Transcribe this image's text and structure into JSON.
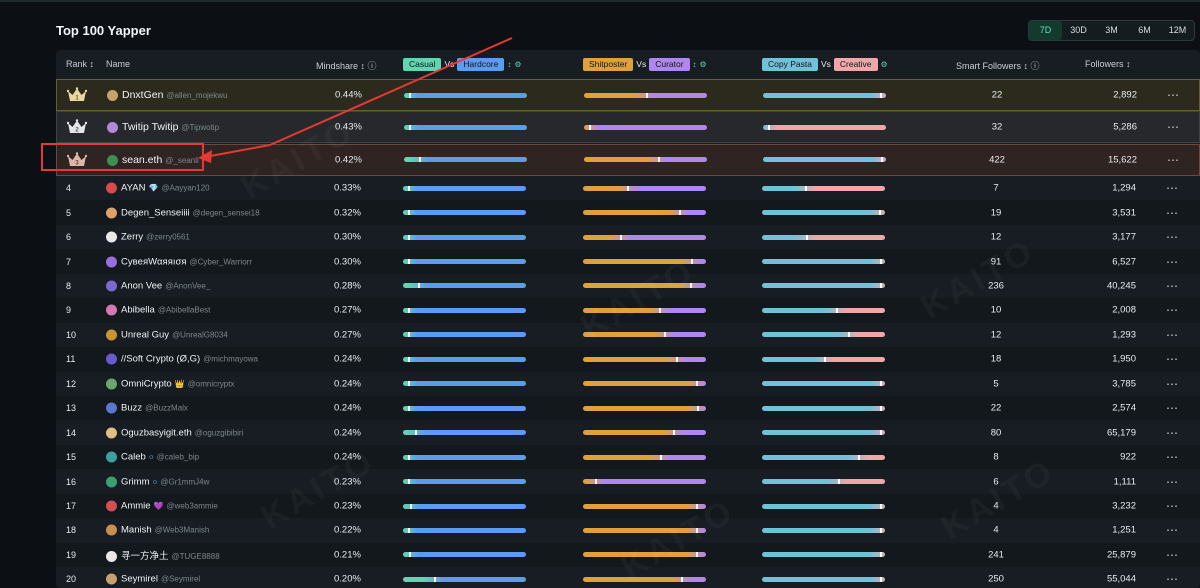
{
  "title": "Top 100 Yapper",
  "periods": [
    {
      "label": "7D",
      "active": true
    },
    {
      "label": "30D",
      "active": false
    },
    {
      "label": "3M",
      "active": false
    },
    {
      "label": "6M",
      "active": false
    },
    {
      "label": "12M",
      "active": false
    }
  ],
  "headers": {
    "rank": "Rank ↕",
    "name": "Name",
    "mindshare": "Mindshare ↕ ⓘ",
    "casual": "Casual",
    "hardcore": "Hardcore",
    "shitposter": "Shitposter",
    "curator": "Curator",
    "copy_pasta": "Copy Pasta",
    "creative": "Creative",
    "vs": "Vs",
    "smart_followers": "Smart Followers ↕ ⓘ",
    "followers": "Followers ↕"
  },
  "colors": {
    "casual": "#5fd6b0",
    "hardcore": "#5b9bf2",
    "shitposter": "#e0a13a",
    "curator": "#b087f0",
    "copy_pasta": "#6fc2d8",
    "creative": "#f1a6a8",
    "accent": "#68e0b8",
    "annotation": "#e53935"
  },
  "more_label": "⋯",
  "watermark": "KAITO",
  "rows": [
    {
      "rank": "1",
      "crown": "gold",
      "name": "DnxtGen",
      "handle": "@allen_mojekwu",
      "badge": "",
      "mindshare": "0.44%",
      "b1": 0.0,
      "b2": 0.5,
      "b3": 0.95,
      "smart": "22",
      "followers": "2,892",
      "avatar": "#c7a36b"
    },
    {
      "rank": "2",
      "crown": "silver",
      "name": "Twitip Twitip",
      "handle": "@Tipwotip",
      "badge": "",
      "mindshare": "0.43%",
      "b1": 0.0,
      "b2": 0.0,
      "b3": 0.0,
      "smart": "32",
      "followers": "5,286",
      "avatar": "#b08ad8"
    },
    {
      "rank": "3",
      "crown": "bronze",
      "name": "sean.eth",
      "handle": "@_seanli",
      "badge": "",
      "mindshare": "0.42%",
      "b1": 0.12,
      "b2": 0.6,
      "b3": 0.97,
      "smart": "422",
      "followers": "15,622",
      "avatar": "#3f8f52"
    },
    {
      "rank": "4",
      "crown": "",
      "name": "AYAN",
      "handle": "@Aayyan120",
      "badge": "💎",
      "mindshare": "0.33%",
      "b1": 0.0,
      "b2": 0.36,
      "b3": 0.35,
      "smart": "7",
      "followers": "1,294",
      "avatar": "#d94a4a"
    },
    {
      "rank": "5",
      "crown": "",
      "name": "Degen_Senseiiii",
      "handle": "@degen_sensei18",
      "badge": "",
      "mindshare": "0.32%",
      "b1": 0.0,
      "b2": 0.78,
      "b3": 0.95,
      "smart": "19",
      "followers": "3,531",
      "avatar": "#e0a06a"
    },
    {
      "rank": "6",
      "crown": "",
      "name": "Zerry",
      "handle": "@zerry0561",
      "badge": "",
      "mindshare": "0.30%",
      "b1": 0.0,
      "b2": 0.3,
      "b3": 0.36,
      "smart": "12",
      "followers": "3,177",
      "avatar": "#e8e8e8"
    },
    {
      "rank": "7",
      "crown": "",
      "name": "СyвeяWαяяıσя",
      "handle": "@Cyber_Warriorr",
      "badge": "",
      "mindshare": "0.30%",
      "b1": 0.0,
      "b2": 0.88,
      "b3": 0.96,
      "smart": "91",
      "followers": "6,527",
      "avatar": "#9b6ee0"
    },
    {
      "rank": "8",
      "crown": "",
      "name": "Anon Vee",
      "handle": "@AnonVee_",
      "badge": "",
      "mindshare": "0.28%",
      "b1": 0.12,
      "b2": 0.87,
      "b3": 0.97,
      "smart": "236",
      "followers": "40,245",
      "avatar": "#7a6ad0"
    },
    {
      "rank": "9",
      "crown": "",
      "name": "Abibella",
      "handle": "@AbibellaBest",
      "badge": "",
      "mindshare": "0.27%",
      "b1": 0.0,
      "b2": 0.62,
      "b3": 0.6,
      "smart": "10",
      "followers": "2,008",
      "avatar": "#d07ab0"
    },
    {
      "rank": "10",
      "crown": "",
      "name": "Unreal Guy",
      "handle": "@UnrealG8034",
      "badge": "",
      "mindshare": "0.27%",
      "b1": 0.0,
      "b2": 0.66,
      "b3": 0.7,
      "smart": "12",
      "followers": "1,293",
      "avatar": "#c9962e"
    },
    {
      "rank": "11",
      "crown": "",
      "name": "//Soft Crypto (Ø,G)",
      "handle": "@michmayowa",
      "badge": "",
      "mindshare": "0.24%",
      "b1": 0.0,
      "b2": 0.76,
      "b3": 0.5,
      "smart": "18",
      "followers": "1,950",
      "avatar": "#6a5acd"
    },
    {
      "rank": "12",
      "crown": "",
      "name": "OmniCrypto",
      "handle": "@omnicryptx",
      "badge": "👑",
      "mindshare": "0.24%",
      "b1": 0.0,
      "b2": 0.92,
      "b3": 0.97,
      "smart": "5",
      "followers": "3,785",
      "avatar": "#6aa86a"
    },
    {
      "rank": "13",
      "crown": "",
      "name": "Buzz",
      "handle": "@BuzzMalx",
      "badge": "",
      "mindshare": "0.24%",
      "b1": 0.0,
      "b2": 0.93,
      "b3": 0.98,
      "smart": "22",
      "followers": "2,574",
      "avatar": "#5a78d0"
    },
    {
      "rank": "14",
      "crown": "",
      "name": "Oguzbasyigit.eth",
      "handle": "@oguzgibibiri",
      "badge": "",
      "mindshare": "0.24%",
      "b1": 0.1,
      "b2": 0.73,
      "b3": 0.96,
      "smart": "80",
      "followers": "65,179",
      "avatar": "#e0c080"
    },
    {
      "rank": "15",
      "crown": "",
      "name": "Caleb",
      "handle": "@caleb_bip",
      "badge": "○",
      "mindshare": "0.24%",
      "b1": 0.0,
      "b2": 0.63,
      "b3": 0.78,
      "smart": "8",
      "followers": "922",
      "avatar": "#3aa0a0"
    },
    {
      "rank": "16",
      "crown": "",
      "name": "Grimm",
      "handle": "@Gr1mmJ4w",
      "badge": "○",
      "mindshare": "0.23%",
      "b1": 0.0,
      "b2": 0.1,
      "b3": 0.62,
      "smart": "6",
      "followers": "1,111",
      "avatar": "#3aa070"
    },
    {
      "rank": "17",
      "crown": "",
      "name": "Ammie",
      "handle": "@web3ammie",
      "badge": "💜",
      "mindshare": "0.23%",
      "b1": 0.06,
      "b2": 0.92,
      "b3": 0.98,
      "smart": "4",
      "followers": "3,232",
      "avatar": "#d05050"
    },
    {
      "rank": "18",
      "crown": "",
      "name": "Manish",
      "handle": "@Web3Manish",
      "badge": "",
      "mindshare": "0.22%",
      "b1": 0.0,
      "b2": 0.92,
      "b3": 0.97,
      "smart": "4",
      "followers": "1,251",
      "avatar": "#c89050"
    },
    {
      "rank": "19",
      "crown": "",
      "name": "寻一方净土",
      "handle": "@TUGE8888",
      "badge": "",
      "mindshare": "0.21%",
      "b1": 0.05,
      "b2": 0.92,
      "b3": 0.97,
      "smart": "241",
      "followers": "25,879",
      "avatar": "#e8e8e8"
    },
    {
      "rank": "20",
      "crown": "",
      "name": "Seymirel",
      "handle": "@Seymirel",
      "badge": "",
      "mindshare": "0.20%",
      "b1": 0.25,
      "b2": 0.8,
      "b3": 0.97,
      "smart": "250",
      "followers": "55,044",
      "avatar": "#c9a070"
    }
  ]
}
